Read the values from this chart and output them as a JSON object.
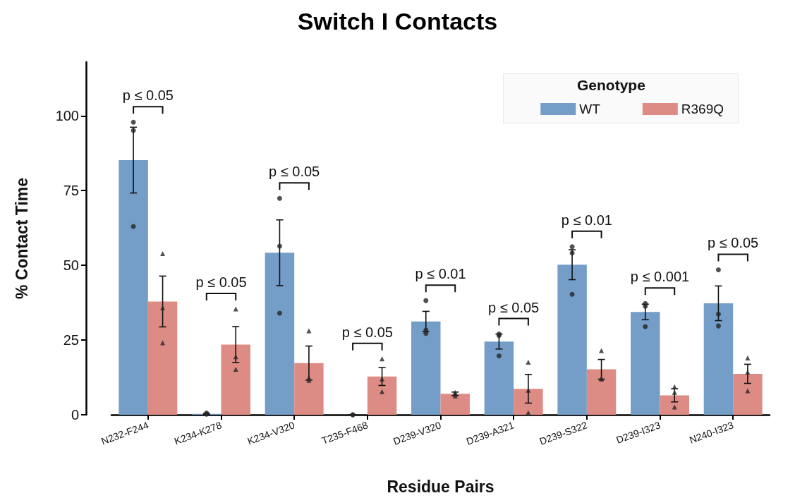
{
  "chart_data": {
    "type": "bar",
    "title": "Switch I Contacts",
    "xlabel": "Residue Pairs",
    "ylabel": "% Contact Time",
    "legend_title": "Genotype",
    "legend": "top right",
    "grid": false,
    "categories": [
      "N232-F244",
      "K234-K278",
      "K234-V320",
      "T235-F468",
      "D239-V320",
      "D239-A321",
      "D239-S322",
      "D239-I323",
      "N240-I323"
    ],
    "ylim": [
      0,
      118
    ],
    "yticks": [
      0,
      25,
      50,
      75,
      100
    ],
    "series": [
      {
        "name": "WT",
        "color": "#749dc8",
        "values": [
          85.2,
          0.3,
          54.2,
          0,
          31.2,
          24.5,
          50.2,
          34.4,
          37.3
        ],
        "errors": [
          11,
          0.2,
          11,
          0,
          3.4,
          2.5,
          5,
          2.6,
          5.8
        ]
      },
      {
        "name": "R369Q",
        "color": "#dd8c85",
        "values": [
          37.9,
          23.5,
          17.3,
          12.8,
          7,
          8.7,
          15.2,
          6.5,
          13.7
        ],
        "errors": [
          8.5,
          6,
          5.7,
          3,
          0.6,
          4.8,
          3.3,
          2.2,
          3.2
        ]
      },
      {
        "type": "scatter",
        "marker": "circle",
        "color": "#262626",
        "x": [
          "N232-F244",
          "N232-F244",
          "N232-F244",
          "K234-K278",
          "K234-K278",
          "K234-V320",
          "K234-V320",
          "K234-V320",
          "T235-F468",
          "T235-F468",
          "D239-V320",
          "D239-V320",
          "D239-V320",
          "D239-A321",
          "D239-A321",
          "D239-A321",
          "D239-S322",
          "D239-S322",
          "D239-S322",
          "D239-I323",
          "D239-I323",
          "D239-I323",
          "N240-I323",
          "N240-I323",
          "N240-I323"
        ],
        "values": [
          97.9,
          95.1,
          63,
          0.6,
          0.2,
          72.4,
          56.4,
          34,
          0,
          0,
          38.2,
          28.3,
          27.2,
          27,
          26.5,
          19.7,
          56.2,
          54.1,
          40.3,
          37.2,
          36.3,
          29.5,
          48.5,
          33.7,
          29.7
        ]
      },
      {
        "type": "scatter",
        "marker": "triangle",
        "color": "#262626",
        "x": [
          "N232-F244",
          "N232-F244",
          "N232-F244",
          "K234-K278",
          "K234-K278",
          "K234-K278",
          "K234-V320",
          "K234-V320",
          "K234-V320",
          "T235-F468",
          "T235-F468",
          "T235-F468",
          "D239-V320",
          "D239-V320",
          "D239-V320",
          "D239-A321",
          "D239-A321",
          "D239-A321",
          "D239-S322",
          "D239-S322",
          "D239-S322",
          "D239-I323",
          "D239-I323",
          "D239-I323",
          "N240-I323",
          "N240-I323",
          "N240-I323"
        ],
        "values": [
          53.9,
          35.8,
          24.1,
          35.4,
          19.4,
          15.2,
          28.1,
          12.4,
          11.5,
          18.7,
          12,
          7.7,
          6.3,
          7.5,
          7,
          17.6,
          8.2,
          0.7,
          21.5,
          12.2,
          12,
          9.4,
          7.5,
          2.6,
          19,
          14.3,
          8
        ]
      }
    ],
    "annotations": [
      "p ≤ 0.05",
      "p ≤ 0.05",
      "p ≤ 0.05",
      "p ≤ 0.05",
      "p ≤ 0.01",
      "p ≤ 0.05",
      "p ≤ 0.01",
      "p ≤ 0.001",
      "p ≤ 0.05"
    ]
  }
}
